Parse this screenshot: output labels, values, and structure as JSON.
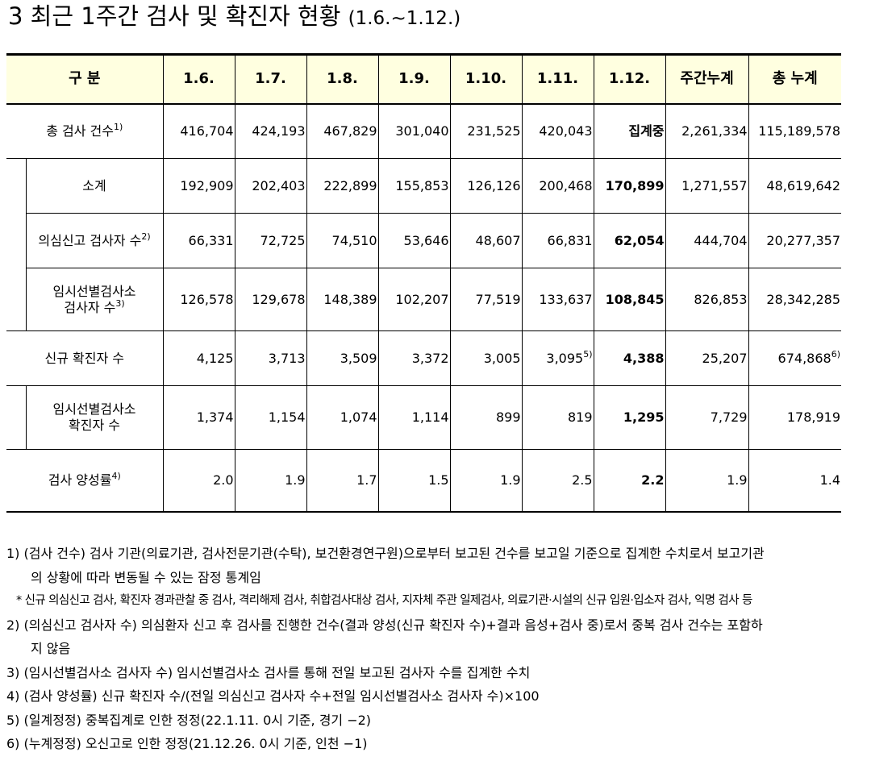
{
  "title": {
    "main": "3  최근 1주간 검사 및 확진자 현황",
    "period": "(1.6.~1.12.)"
  },
  "table": {
    "headers": [
      "구 분",
      "1.6.",
      "1.7.",
      "1.8.",
      "1.9.",
      "1.10.",
      "1.11.",
      "1.12.",
      "주간누계",
      "총 누계"
    ],
    "rows": [
      {
        "label": "총 검사 건수",
        "sup": "1)",
        "values": [
          "416,704",
          "424,193",
          "467,829",
          "301,040",
          "231,525",
          "420,043",
          "집계중",
          "2,261,334",
          "115,189,578"
        ]
      },
      {
        "label": "소계",
        "values": [
          "192,909",
          "202,403",
          "222,899",
          "155,853",
          "126,126",
          "200,468",
          "170,899",
          "1,271,557",
          "48,619,642"
        ]
      },
      {
        "label": "의심신고 검사자 수",
        "sup": "2)",
        "values": [
          "66,331",
          "72,725",
          "74,510",
          "53,646",
          "48,607",
          "66,831",
          "62,054",
          "444,704",
          "20,277,357"
        ]
      },
      {
        "label_line1": "임시선별검사소",
        "label_line2": "검사자 수",
        "sup": "3)",
        "values": [
          "126,578",
          "129,678",
          "148,389",
          "102,207",
          "77,519",
          "133,637",
          "108,845",
          "826,853",
          "28,342,285"
        ]
      },
      {
        "label": "신규 확진자 수",
        "values": [
          "4,125",
          "3,713",
          "3,509",
          "3,372",
          "3,005",
          "3,095",
          "4,388",
          "25,207",
          "674,868"
        ],
        "sup_1_11": "5)",
        "sup_total": "6)"
      },
      {
        "label_line1": "임시선별검사소",
        "label_line2": "확진자 수",
        "values": [
          "1,374",
          "1,154",
          "1,074",
          "1,114",
          "899",
          "819",
          "1,295",
          "7,729",
          "178,919"
        ]
      },
      {
        "label": "검사 양성률",
        "sup": "4)",
        "values": [
          "2.0",
          "1.9",
          "1.7",
          "1.5",
          "1.9",
          "2.5",
          "2.2",
          "1.9",
          "1.4"
        ]
      }
    ]
  },
  "notes": {
    "n1_line1": "1) (검사 건수) 검사 기관(의료기관, 검사전문기관(수탁), 보건환경연구원)으로부터 보고된 건수를 보고일 기준으로 집계한 수치로서 보고기관",
    "n1_line2": "의 상황에 따라 변동될 수 있는 잠정 통계임",
    "n1_star": "* 신규 의심신고 검사, 확진자 경과관찰 중 검사, 격리해제 검사, 취합검사대상 검사, 지자체 주관 일제검사, 의료기관·시설의 신규 입원·입소자 검사, 익명 검사 등",
    "n2_line1": "2) (의심신고 검사자 수) 의심환자 신고 후 검사를 진행한 건수(결과 양성(신규 확진자 수)+결과 음성+검사 중)로서 중복 검사 건수는 포함하",
    "n2_line2": "지 않음",
    "n3": "3) (임시선별검사소 검사자 수) 임시선별검사소 검사를 통해 전일 보고된 검사자 수를 집계한 수치",
    "n4": "4) (검사 양성률) 신규 확진자 수/(전일 의심신고 검사자 수+전일 임시선별검사소 검사자 수)×100",
    "n5": "5) (일계정정) 중복집계로 인한 정정(22.1.11. 0시 기준, 경기 −2)",
    "n6": "6) (누계정정) 오신고로 인한 정정(21.12.26. 0시 기준, 인천 −1)"
  }
}
